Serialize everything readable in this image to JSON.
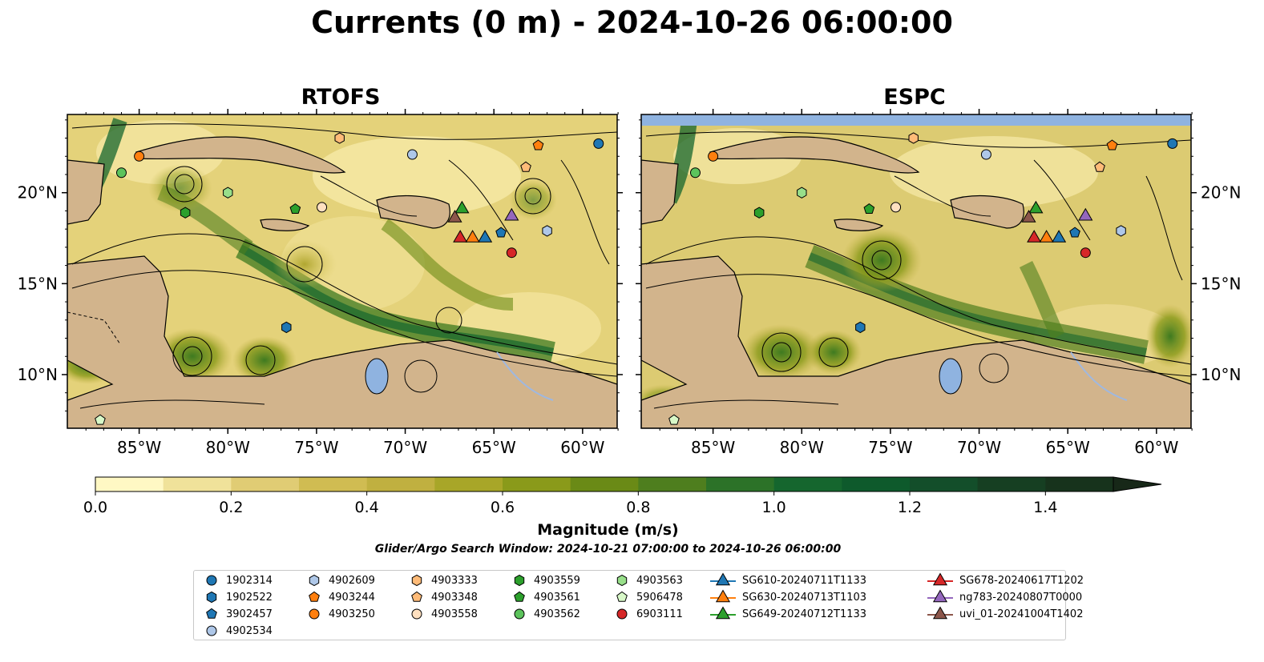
{
  "title": "Currents (0 m) - 2024-10-26 06:00:00",
  "panels": [
    {
      "title": "RTOFS"
    },
    {
      "title": "ESPC"
    }
  ],
  "lon_ticks": [
    "85°W",
    "80°W",
    "75°W",
    "70°W",
    "65°W",
    "60°W"
  ],
  "lat_ticks": [
    "20°N",
    "15°N",
    "10°N"
  ],
  "colorbar": {
    "label": "Magnitude (m/s)",
    "ticks": [
      "0.0",
      "0.2",
      "0.4",
      "0.6",
      "0.8",
      "1.0",
      "1.2",
      "1.4"
    ],
    "colors": [
      "#fff8c4",
      "#f0e29a",
      "#e0cc74",
      "#d0bc52",
      "#c0b040",
      "#a8a628",
      "#8a9a1a",
      "#6a8a16",
      "#4e7e1e",
      "#2c7228",
      "#15662e",
      "#0e5a2c",
      "#134e2a",
      "#163f22",
      "#17331c",
      "#172818"
    ]
  },
  "search_window": "Glider/Argo Search Window: 2024-10-21 07:00:00 to 2024-10-26 06:00:00",
  "legend": [
    {
      "label": "1902314",
      "marker": "circle",
      "color": "#1f77b4"
    },
    {
      "label": "1902522",
      "marker": "hexagon",
      "color": "#1f77b4"
    },
    {
      "label": "3902457",
      "marker": "pentagon",
      "color": "#1f77b4"
    },
    {
      "label": "4902534",
      "marker": "circle",
      "color": "#aec7e8"
    },
    {
      "label": "4902609",
      "marker": "hexagon",
      "color": "#aec7e8"
    },
    {
      "label": "4903244",
      "marker": "pentagon",
      "color": "#ff7f0e"
    },
    {
      "label": "4903250",
      "marker": "circle",
      "color": "#ff7f0e"
    },
    {
      "label": "4903333",
      "marker": "hexagon",
      "color": "#ffbb78"
    },
    {
      "label": "4903348",
      "marker": "pentagon",
      "color": "#ffbb78"
    },
    {
      "label": "4903558",
      "marker": "circle",
      "color": "#ffe0c0"
    },
    {
      "label": "4903559",
      "marker": "hexagon",
      "color": "#2ca02c"
    },
    {
      "label": "4903561",
      "marker": "pentagon",
      "color": "#2ca02c"
    },
    {
      "label": "4903562",
      "marker": "circle",
      "color": "#5cc35c"
    },
    {
      "label": "4903563",
      "marker": "hexagon",
      "color": "#98df8a"
    },
    {
      "label": "5906478",
      "marker": "pentagon",
      "color": "#d8f8c8"
    },
    {
      "label": "6903111",
      "marker": "circle",
      "color": "#d62728"
    },
    {
      "label": "SG610-20240711T1133",
      "marker": "triangle",
      "color": "#1f77b4"
    },
    {
      "label": "SG630-20240713T1103",
      "marker": "triangle",
      "color": "#ff7f0e"
    },
    {
      "label": "SG649-20240712T1133",
      "marker": "triangle",
      "color": "#2ca02c"
    },
    {
      "label": "SG678-20240617T1202",
      "marker": "triangle",
      "color": "#d62728"
    },
    {
      "label": "ng783-20240807T0000",
      "marker": "triangle",
      "color": "#9467bd"
    },
    {
      "label": "uvi_01-20241004T1402",
      "marker": "triangle",
      "color": "#8c564b"
    }
  ],
  "markers": [
    {
      "id": "1902314",
      "lon": -59.1,
      "lat": 22.7
    },
    {
      "id": "1902522",
      "lon": -76.7,
      "lat": 12.6
    },
    {
      "id": "3902457",
      "lon": -64.6,
      "lat": 17.8
    },
    {
      "id": "4902534",
      "lon": -69.6,
      "lat": 22.1
    },
    {
      "id": "4902609",
      "lon": -62.0,
      "lat": 17.9
    },
    {
      "id": "4903244",
      "lon": -62.5,
      "lat": 22.6
    },
    {
      "id": "4903250",
      "lon": -85.0,
      "lat": 22.0
    },
    {
      "id": "4903333",
      "lon": -73.7,
      "lat": 23.0
    },
    {
      "id": "4903348",
      "lon": -63.2,
      "lat": 21.4
    },
    {
      "id": "4903558",
      "lon": -74.7,
      "lat": 19.2
    },
    {
      "id": "4903559",
      "lon": -82.4,
      "lat": 18.9
    },
    {
      "id": "4903561",
      "lon": -76.2,
      "lat": 19.1
    },
    {
      "id": "4903562",
      "lon": -86.0,
      "lat": 21.1
    },
    {
      "id": "4903563",
      "lon": -80.0,
      "lat": 20.0
    },
    {
      "id": "5906478",
      "lon": -87.2,
      "lat": 7.5
    },
    {
      "id": "6903111",
      "lon": -64.0,
      "lat": 16.7
    },
    {
      "id": "SG610-20240711T1133",
      "lon": -65.5,
      "lat": 17.5
    },
    {
      "id": "SG630-20240713T1103",
      "lon": -66.2,
      "lat": 17.5
    },
    {
      "id": "SG649-20240712T1133",
      "lon": -66.8,
      "lat": 19.1
    },
    {
      "id": "SG678-20240617T1202",
      "lon": -66.9,
      "lat": 17.5
    },
    {
      "id": "ng783-20240807T0000",
      "lon": -64.0,
      "lat": 18.7
    },
    {
      "id": "uvi_01-20241004T1402",
      "lon": -67.2,
      "lat": 18.6
    }
  ]
}
